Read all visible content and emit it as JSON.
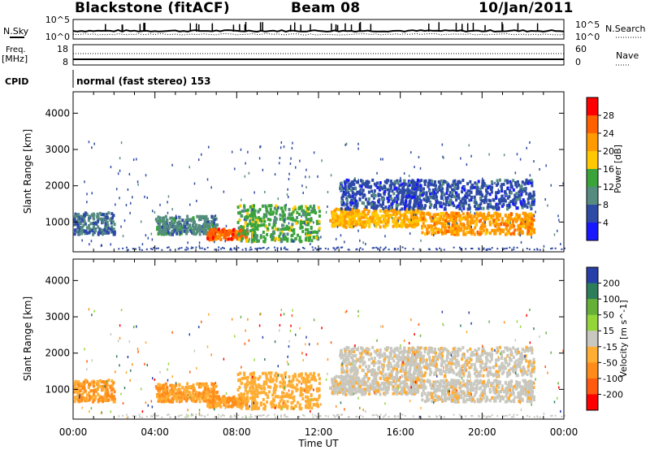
{
  "header": {
    "station": "Blackstone (fitACF)",
    "beam": "Beam 08",
    "date": "10/Jan/2011"
  },
  "summary": {
    "nsky_label": "N.Sky",
    "nsearch_label": "N.Search",
    "noise_top_tick": "10^5",
    "noise_bottom_tick": "10^0",
    "freq_label": "Freq.",
    "freq_unit": "[MHz]",
    "freq_ticks": [
      "18",
      "8"
    ],
    "nave_label": "Nave",
    "nave_ticks": [
      "60",
      "0"
    ],
    "cpid_label": "CPID",
    "cpid_text": "normal (fast stereo) 153"
  },
  "power_panel": {
    "colorbar_label": "Power [dB]",
    "colorbar_ticks": [
      "28",
      "24",
      "20",
      "16",
      "12",
      "8",
      "4"
    ],
    "colorbar_colors": [
      "#ff0000",
      "#ff6000",
      "#ff9a00",
      "#ffc800",
      "#3aa33a",
      "#558c7f",
      "#2d4aa5",
      "#1818ff"
    ]
  },
  "velocity_panel": {
    "colorbar_label": "Velocity [m s^-1]",
    "colorbar_ticks": [
      "200",
      "100",
      "50",
      "15",
      "-15",
      "-50",
      "-100",
      "-200"
    ],
    "colorbar_colors": [
      "#2640a8",
      "#2e7d5a",
      "#66b03a",
      "#94d63a",
      "#c8c8c0",
      "#ffad33",
      "#ff8c1a",
      "#ff5a0f",
      "#ff0000"
    ]
  },
  "chart_data": {
    "type": "heatmap",
    "xlabel": "Time UT",
    "ylabel": "Slant Range [km]",
    "x_ticks": [
      "00:00",
      "04:00",
      "08:00",
      "12:00",
      "16:00",
      "20:00",
      "00:00"
    ],
    "xlim_hours": [
      0,
      24
    ],
    "y_ticks": [
      1000,
      2000,
      3000,
      4000
    ],
    "ylim": [
      180,
      4590
    ],
    "scatter_regions": [
      {
        "start_h": 0.0,
        "end_h": 2.0,
        "range_km": [
          700,
          1300
        ],
        "power_db": 8,
        "velocity": -50
      },
      {
        "start_h": 4.0,
        "end_h": 7.0,
        "range_km": [
          700,
          1200
        ],
        "power_db": 10,
        "velocity": -50
      },
      {
        "start_h": 6.5,
        "end_h": 8.5,
        "range_km": [
          550,
          850
        ],
        "power_db": 26,
        "velocity": -50
      },
      {
        "start_h": 8.0,
        "end_h": 12.0,
        "range_km": [
          500,
          1500
        ],
        "power_db": 14,
        "velocity": -30
      },
      {
        "start_h": 12.5,
        "end_h": 17.0,
        "range_km": [
          900,
          1400
        ],
        "power_db": 20,
        "velocity": -5
      },
      {
        "start_h": 17.0,
        "end_h": 22.5,
        "range_km": [
          700,
          1300
        ],
        "power_db": 22,
        "velocity": -5
      },
      {
        "start_h": 13.0,
        "end_h": 22.5,
        "range_km": [
          1400,
          2200
        ],
        "power_db": 6,
        "velocity": -5
      }
    ]
  }
}
